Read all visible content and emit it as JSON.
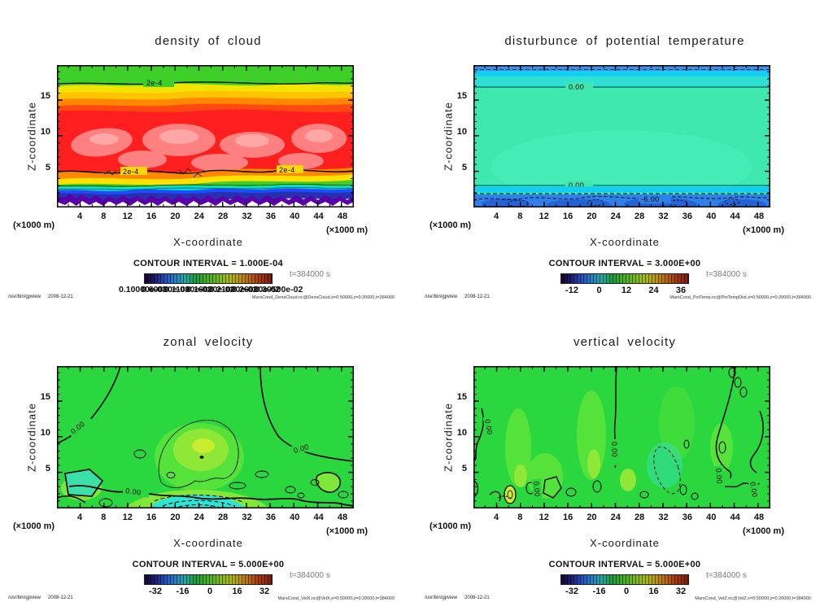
{
  "shared": {
    "timestamp": "t=384000 s",
    "footer_left": {
      "command": "/usr/bin/gpview",
      "date": "2008-12-21"
    },
    "axis": {
      "x_label": "X-coordinate",
      "y_label": "Z-coordinate",
      "x_unit": "(×1000 m)",
      "x_ticks": [
        "4",
        "8",
        "12",
        "16",
        "20",
        "24",
        "28",
        "32",
        "36",
        "40",
        "44",
        "48"
      ],
      "y_ticks": [
        "15",
        "10",
        "5"
      ]
    }
  },
  "panels": [
    {
      "title": "density of cloud",
      "contour_interval": "CONTOUR INTERVAL = 1.000E-04",
      "colorbar_ticks": [
        "0.10000e-03",
        "0.60000e-03",
        "0.11000e-02",
        "0.16000e-02",
        "0.21000e-02",
        "0.26000e-02",
        "0.30500e-02"
      ],
      "footer_right": "MarsCond_DensCloud.nc@DensCloud,x=0:50000,z=0:20000,t=384000",
      "contour_labels": [
        "2e-4",
        "2e-4",
        "2e-4"
      ]
    },
    {
      "title": "disturbunce of potential temperature",
      "contour_interval": "CONTOUR INTERVAL = 3.000E+00",
      "colorbar_ticks": [
        "-12",
        "0",
        "12",
        "24",
        "36"
      ],
      "footer_right": "MarsCond_PotTemp.nc@PotTempDist,x=0:50000,z=0:20000,t=384000",
      "contour_labels": [
        "0.00",
        "0.00",
        "-6.00"
      ]
    },
    {
      "title": "zonal velocity",
      "contour_interval": "CONTOUR INTERVAL = 5.000E+00",
      "colorbar_ticks": [
        "-32",
        "-16",
        "0",
        "16",
        "32"
      ],
      "footer_right": "MarsCond_VelX.nc@VelX,x=0:50000,z=0:20000,t=384000",
      "contour_labels": [
        "0.00",
        "0.00",
        "0.00"
      ]
    },
    {
      "title": "vertical velocity",
      "contour_interval": "CONTOUR INTERVAL = 5.000E+00",
      "colorbar_ticks": [
        "-32",
        "-16",
        "0",
        "16",
        "32"
      ],
      "footer_right": "MarsCond_VelZ.nc@VelZ,x=0:50000,z=0:20000,t=384000",
      "contour_labels": [
        "0.00",
        "0.00",
        "0.00",
        "0.00",
        "0.00"
      ]
    }
  ],
  "colors": {
    "cloud_red": "#ff1f1f",
    "cloud_salmon": "#ff8080",
    "cloud_green_top": "#3ecf28",
    "aquamarine_field": "#3ee8ae",
    "velocity_green": "#2bd73e",
    "negative_cyan": "#2ee4d4",
    "bottom_blue": "#2f80e8",
    "purple_layer": "#5a00aa"
  },
  "chart_data": [
    {
      "type": "heatmap",
      "title": "density of cloud",
      "xlabel": "X-coordinate",
      "ylabel": "Z-coordinate",
      "x_unit": "×1000 m",
      "xlim": [
        0,
        50
      ],
      "ylim": [
        0,
        20
      ],
      "x_ticks": [
        4,
        8,
        12,
        16,
        20,
        24,
        28,
        32,
        36,
        40,
        44,
        48
      ],
      "y_ticks": [
        5,
        10,
        15
      ],
      "contour_interval": 0.0001,
      "labeled_contours": [
        {
          "value": "2e-4",
          "at": "z≈17.5 full width"
        },
        {
          "value": "2e-4",
          "at": "z≈5 full width (two labels)"
        }
      ],
      "time": "t=384000 s",
      "field": "green/yellow band z≈17.5-20; broad deep-red cloud layer z≈5-17 with lighter turbulent patches; thin yellow-green-cyan-blue-navy-purple strata z≈2-5; white (no cloud) below z≈2",
      "colorbar_tick_labels": [
        "0.10000e-03",
        "0.60000e-03",
        "0.11000e-02",
        "0.16000e-02",
        "0.21000e-02",
        "0.26000e-02",
        "0.30500e-02"
      ]
    },
    {
      "type": "heatmap",
      "title": "disturbunce of potential temperature",
      "xlabel": "X-coordinate",
      "ylabel": "Z-coordinate",
      "x_unit": "×1000 m",
      "xlim": [
        0,
        50
      ],
      "ylim": [
        0,
        20
      ],
      "x_ticks": [
        4,
        8,
        12,
        16,
        20,
        24,
        28,
        32,
        36,
        40,
        44,
        48
      ],
      "y_ticks": [
        5,
        10,
        15
      ],
      "contour_interval": 3.0,
      "labeled_contours": [
        {
          "value": "0.00",
          "at": "z≈17 full width"
        },
        {
          "value": "0.00",
          "at": "z≈3.5 full width"
        },
        {
          "value": "-6.00",
          "at": "z≈2 dashed"
        }
      ],
      "time": "t=384000 s",
      "field": "uniform aquamarine (≈0) for 3.5<z<17; cyan strips at z≈3 and z≈18; blue strip at top z≈19-20; blue negative layer below z≈3 with dashed -6 contour blobs",
      "colorbar_tick_labels": [
        -12,
        0,
        12,
        24,
        36
      ]
    },
    {
      "type": "heatmap",
      "title": "zonal velocity",
      "xlabel": "X-coordinate",
      "ylabel": "Z-coordinate",
      "x_unit": "×1000 m",
      "xlim": [
        0,
        50
      ],
      "ylim": [
        0,
        20
      ],
      "x_ticks": [
        4,
        8,
        12,
        16,
        20,
        24,
        28,
        32,
        36,
        40,
        44,
        48
      ],
      "y_ticks": [
        5,
        10,
        15
      ],
      "contour_interval": 5.0,
      "labeled_contours": [
        {
          "value": "0.00",
          "at": "curve from top x≈10 to left edge z≈8"
        },
        {
          "value": "0.00",
          "at": "curve from top x≈33 to right edge z≈7"
        },
        {
          "value": "0.00",
          "at": "wavy line z≈3 across bottom"
        }
      ],
      "time": "t=384000 s",
      "field": "mostly green (≈0); lighter yellow-green dome x≈17-30, z≈4-12; cyan negative pocket with dashed contours at bottom center x≈17-30, z<2; small closed contour blobs near surface",
      "colorbar_tick_labels": [
        -32,
        -16,
        0,
        16,
        32
      ]
    },
    {
      "type": "heatmap",
      "title": "vertical velocity",
      "xlabel": "X-coordinate",
      "ylabel": "Z-coordinate",
      "x_unit": "×1000 m",
      "xlim": [
        0,
        50
      ],
      "ylim": [
        0,
        20
      ],
      "x_ticks": [
        4,
        8,
        12,
        16,
        20,
        24,
        28,
        32,
        36,
        40,
        44,
        48
      ],
      "y_ticks": [
        5,
        10,
        15
      ],
      "contour_interval": 5.0,
      "labeled_contours": [
        {
          "value": "0.00",
          "at": "vertical line x≈24 from top to z≈7"
        },
        {
          "value": "0.00",
          "at": "left edge x≈1"
        },
        {
          "value": "0.00",
          "at": "right side x≈41-48 wiggles"
        },
        {
          "value": "0.00",
          "at": "several small closed cells near surface"
        }
      ],
      "time": "t=384000 s",
      "field": "green (≈0) with light-green updraft streaks; dashed negative cell x≈28-31, z≈2-7; many small closed contour cells below z≈7",
      "colorbar_tick_labels": [
        -32,
        -16,
        0,
        16,
        32
      ]
    }
  ]
}
